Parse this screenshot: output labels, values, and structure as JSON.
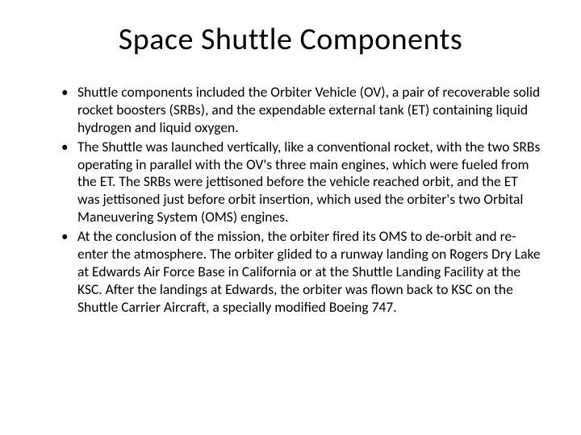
{
  "slide": {
    "title": "Space Shuttle Components",
    "bullets": [
      "Shuttle components included the Orbiter Vehicle (OV), a pair of recoverable solid rocket boosters (SRBs), and the expendable external tank (ET) containing liquid hydrogen and liquid oxygen.",
      "The Shuttle was launched vertically, like a conventional rocket, with the two SRBs operating in parallel with the OV's three main engines, which were fueled from the ET. The SRBs were jettisoned before the vehicle reached orbit, and the ET was jettisoned just before orbit insertion, which used the orbiter's two Orbital Maneuvering System (OMS) engines.",
      "At the conclusion of the mission, the orbiter fired its OMS to de-orbit and re-enter the atmosphere. The orbiter glided to a runway landing on Rogers Dry Lake at Edwards Air Force Base in California or at the Shuttle Landing Facility at the KSC. After the landings at Edwards, the orbiter was flown back to KSC on the Shuttle Carrier Aircraft, a specially modified Boeing 747."
    ],
    "style": {
      "background_color": "#ffffff",
      "text_color": "#000000",
      "title_fontsize": 38,
      "body_fontsize": 17.5,
      "font_family": "Calibri"
    }
  }
}
